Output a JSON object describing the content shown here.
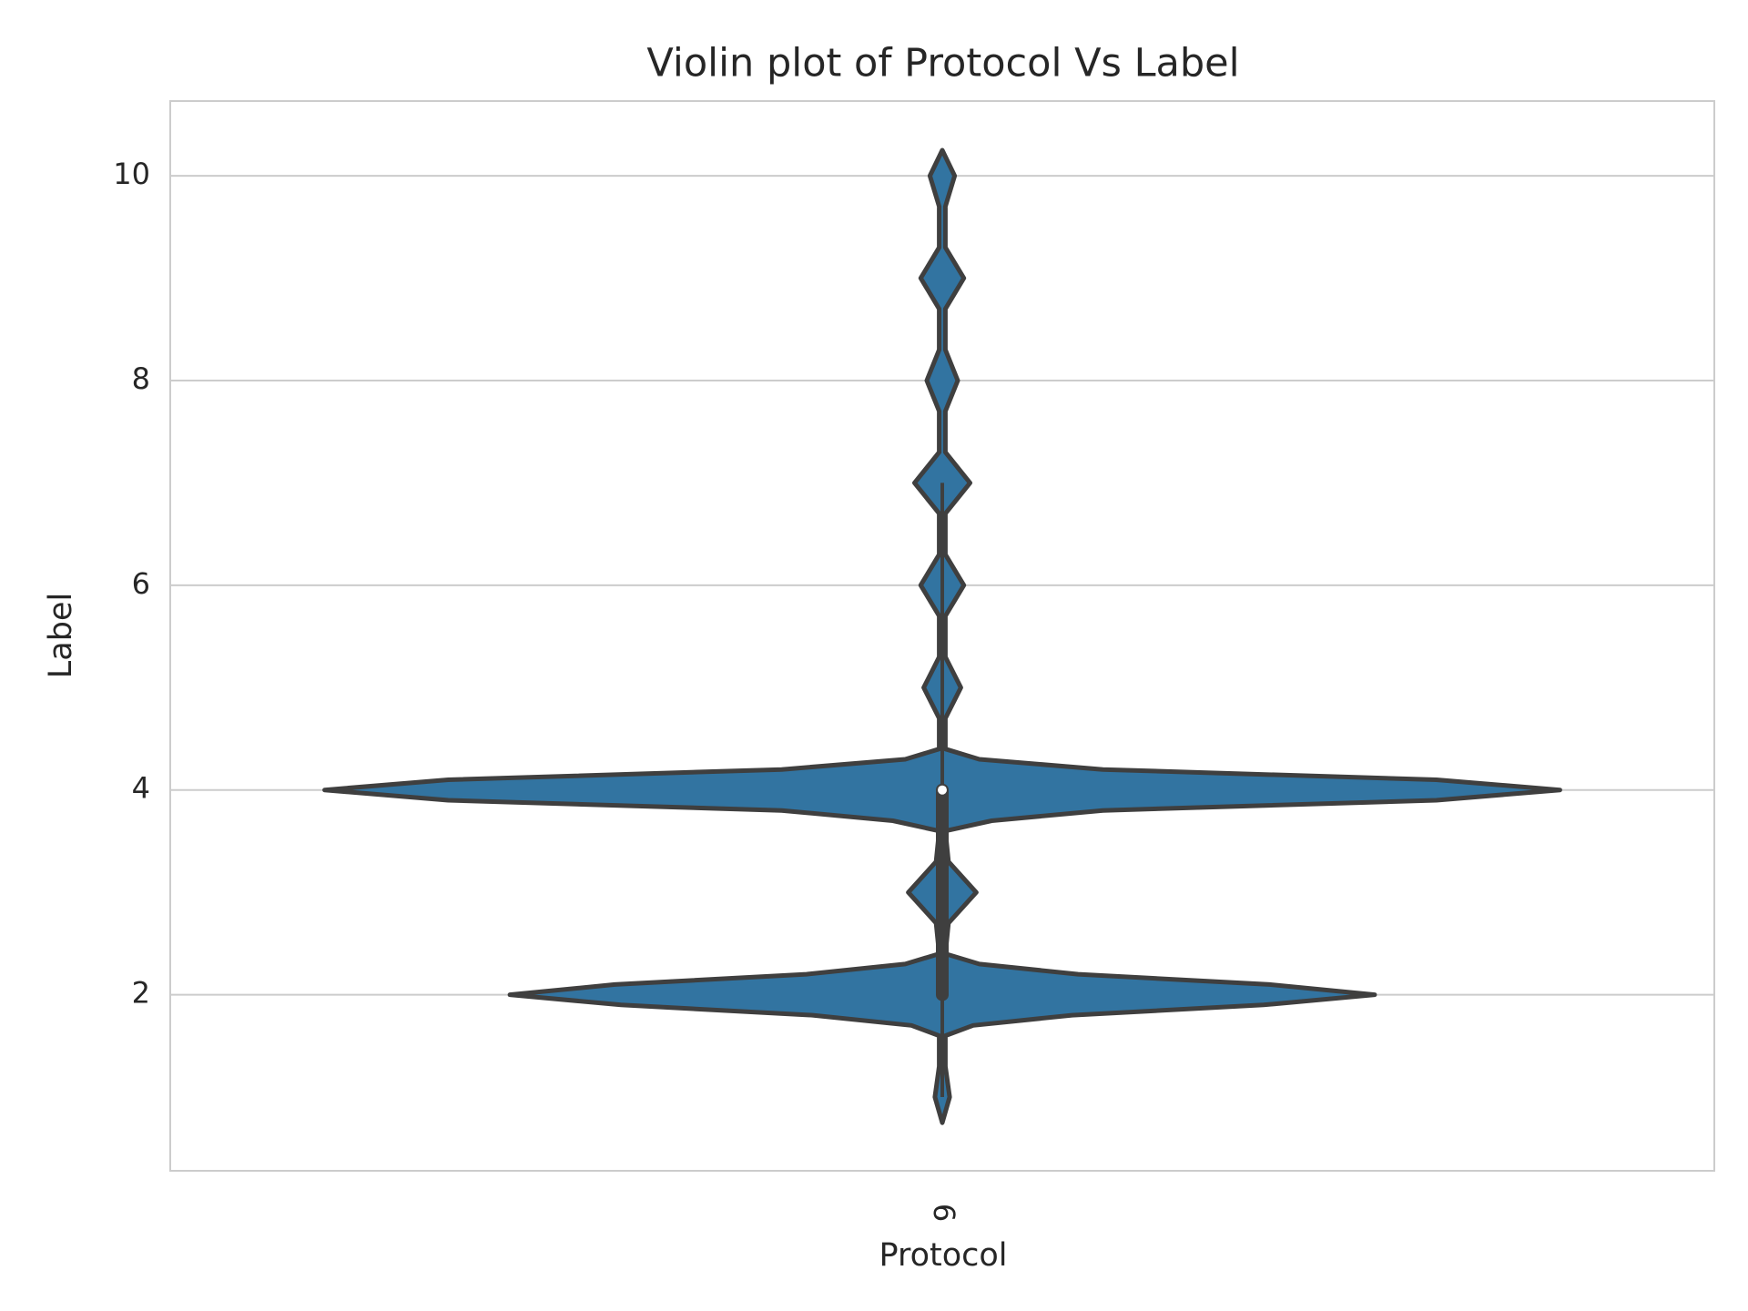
{
  "chart_data": {
    "type": "violin",
    "title": "Violin plot of Protocol Vs Label",
    "xlabel": "Protocol",
    "ylabel": "Label",
    "categories": [
      "6"
    ],
    "violin": {
      "y": [
        0.75,
        1.0,
        1.3,
        1.6,
        1.7,
        1.8,
        1.9,
        2.0,
        2.1,
        2.2,
        2.3,
        2.4,
        2.7,
        3.0,
        3.3,
        3.6,
        3.7,
        3.8,
        3.9,
        4.0,
        4.1,
        4.2,
        4.3,
        4.4,
        4.7,
        5.0,
        5.3,
        5.7,
        6.0,
        6.3,
        6.7,
        7.0,
        7.3,
        7.7,
        8.0,
        8.3,
        8.7,
        9.0,
        9.3,
        9.7,
        10.0,
        10.25
      ],
      "density": [
        0,
        0.012,
        0.005,
        0.005,
        0.05,
        0.21,
        0.52,
        0.7,
        0.53,
        0.22,
        0.06,
        0.005,
        0.01,
        0.055,
        0.01,
        0.005,
        0.08,
        0.26,
        0.8,
        1.0,
        0.8,
        0.26,
        0.06,
        0.005,
        0.005,
        0.03,
        0.005,
        0.005,
        0.035,
        0.005,
        0.005,
        0.045,
        0.005,
        0.005,
        0.025,
        0.005,
        0.005,
        0.035,
        0.005,
        0.005,
        0.02,
        0
      ]
    },
    "box": {
      "whisker_low": 1,
      "q1": 2,
      "median": 4,
      "q3": 4,
      "whisker_high": 7
    },
    "color": "#3274a1",
    "edge_color": "#3f3f3f",
    "ylim": [
      0.28,
      10.73
    ],
    "yticks": [
      2,
      4,
      6,
      8,
      10
    ],
    "grid": true
  }
}
